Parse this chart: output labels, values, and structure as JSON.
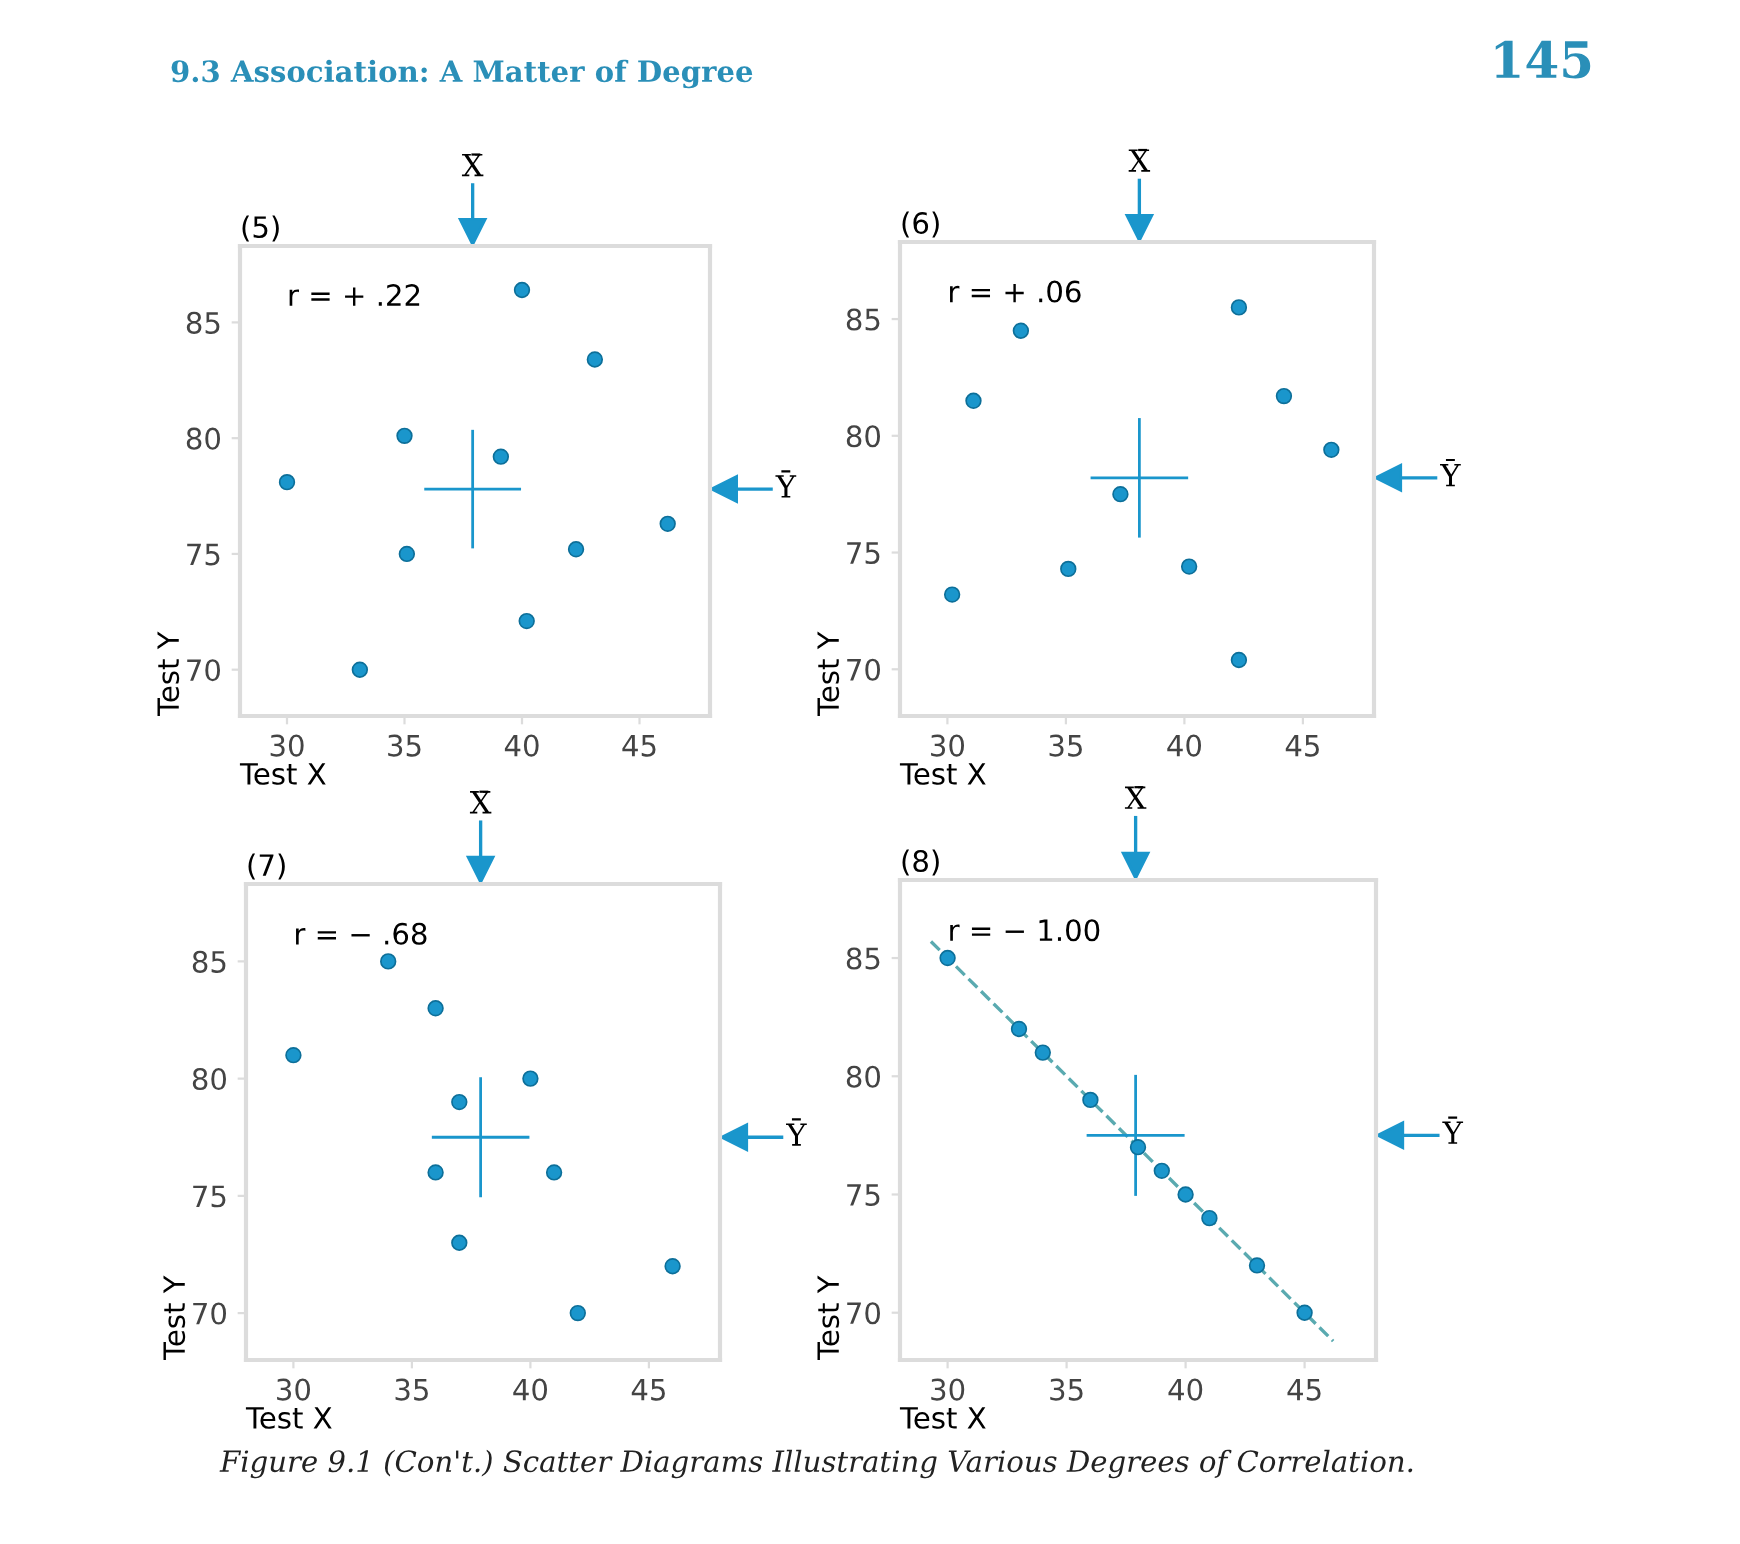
{
  "chart_data": [
    {
      "type": "scatter",
      "title": "(5)",
      "xlabel": "Test X",
      "ylabel": "Test Y",
      "xlim": [
        28,
        48
      ],
      "ylim": [
        68,
        88.3
      ],
      "xticks": [
        30,
        35,
        40,
        45
      ],
      "yticks": [
        70,
        75,
        80,
        85
      ],
      "marker": "circle",
      "grid": false,
      "legend": false,
      "x": [
        40,
        43.1,
        35,
        39.1,
        30,
        46.2,
        42.3,
        35.1,
        40.2,
        33.1
      ],
      "series": [
        {
          "color": "#1a96cc",
          "values": [
            86.4,
            83.4,
            80.1,
            79.2,
            78.1,
            76.3,
            75.2,
            75.0,
            72.1,
            70.0
          ]
        }
      ],
      "ref_lines": [
        {
          "axis": "x",
          "value": 37.9,
          "color": "#1a96cc"
        },
        {
          "axis": "y",
          "value": 77.8,
          "color": "#1a96cc"
        }
      ],
      "annotations": [
        "r = + .22",
        "X̄",
        "Ȳ",
        "9.3 Association: A Matter of Degree",
        "145"
      ]
    },
    {
      "type": "scatter",
      "title": "(6)",
      "xlabel": "Test X",
      "ylabel": "Test Y",
      "xlim": [
        28,
        48
      ],
      "ylim": [
        68,
        88.3
      ],
      "xticks": [
        30,
        35,
        40,
        45
      ],
      "yticks": [
        70,
        75,
        80,
        85
      ],
      "marker": "circle",
      "grid": false,
      "legend": false,
      "x": [
        42.3,
        33.1,
        31.1,
        44.2,
        46.2,
        37.3,
        35.1,
        40.2,
        30.2,
        42.3
      ],
      "series": [
        {
          "color": "#1a96cc",
          "values": [
            85.5,
            84.5,
            81.5,
            81.7,
            79.4,
            77.5,
            74.3,
            74.4,
            73.2,
            70.4
          ]
        }
      ],
      "ref_lines": [
        {
          "axis": "x",
          "value": 38.1,
          "color": "#1a96cc"
        },
        {
          "axis": "y",
          "value": 78.2,
          "color": "#1a96cc"
        }
      ],
      "annotations": [
        "r = + .06",
        "X̄",
        "Ȳ"
      ]
    },
    {
      "type": "scatter",
      "title": "(7)",
      "xlabel": "Test X",
      "ylabel": "Test Y",
      "xlim": [
        28,
        48
      ],
      "ylim": [
        68,
        88.3
      ],
      "xticks": [
        30,
        35,
        40,
        45
      ],
      "yticks": [
        70,
        75,
        80,
        85
      ],
      "marker": "circle",
      "grid": false,
      "legend": false,
      "x": [
        34,
        36,
        30,
        40,
        37,
        36,
        41,
        37,
        46,
        42
      ],
      "series": [
        {
          "color": "#1a96cc",
          "values": [
            85,
            83,
            81,
            80,
            79,
            76,
            76,
            73,
            72,
            70
          ]
        }
      ],
      "ref_lines": [
        {
          "axis": "x",
          "value": 37.9,
          "color": "#1a96cc"
        },
        {
          "axis": "y",
          "value": 77.5,
          "color": "#1a96cc"
        }
      ],
      "annotations": [
        "r = − .68",
        "X̄",
        "Ȳ"
      ]
    },
    {
      "type": "scatter",
      "title": "(8)",
      "xlabel": "Test X",
      "ylabel": "Test Y",
      "xlim": [
        28,
        48
      ],
      "ylim": [
        68,
        88.3
      ],
      "xticks": [
        30,
        35,
        40,
        45
      ],
      "yticks": [
        70,
        75,
        80,
        85
      ],
      "marker": "circle",
      "grid": false,
      "legend": false,
      "x": [
        30,
        33,
        34,
        36,
        38,
        39,
        40,
        41,
        43,
        45
      ],
      "series": [
        {
          "color": "#1a96cc",
          "values": [
            85,
            82,
            81,
            79,
            77,
            76,
            75,
            74,
            72,
            70
          ]
        },
        {
          "type": "line",
          "line_style": "dashed",
          "marker": "none",
          "color": "#5aaab0",
          "x": [
            29.3,
            46.2
          ],
          "values": [
            85.7,
            68.8
          ]
        }
      ],
      "ref_lines": [
        {
          "axis": "x",
          "value": 37.9,
          "color": "#1a96cc"
        },
        {
          "axis": "y",
          "value": 77.5,
          "color": "#1a96cc"
        }
      ],
      "annotations": [
        "r = − 1.00",
        "X̄",
        "Ȳ",
        "Figure 9.1 (Con't.) Scatter Diagrams Illustrating Various Degrees of Correlation."
      ]
    }
  ]
}
